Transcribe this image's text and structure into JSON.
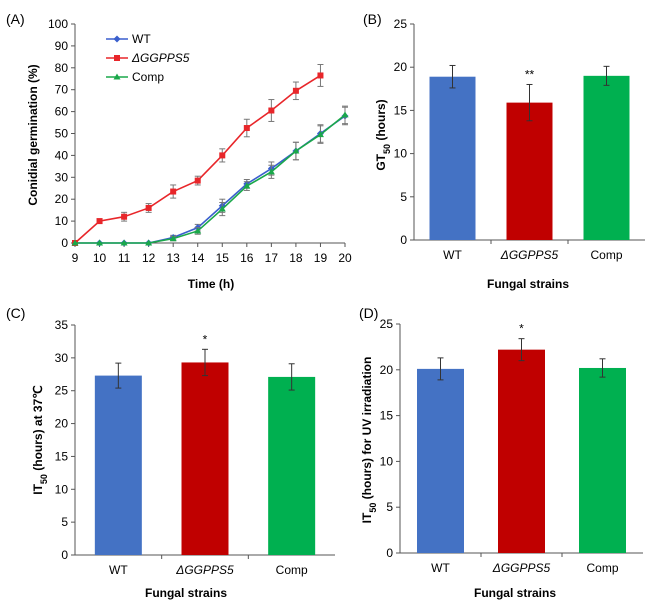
{
  "chart_data": [
    {
      "panel": "(A)",
      "type": "line",
      "xlabel": "Time (h)",
      "ylabel": "Conidial germination (%)",
      "xlim": [
        9,
        20
      ],
      "ylim": [
        0,
        100
      ],
      "x_ticks": [
        9,
        10,
        11,
        12,
        13,
        14,
        15,
        16,
        17,
        18,
        19,
        20
      ],
      "y_ticks": [
        0,
        10,
        20,
        30,
        40,
        50,
        60,
        70,
        80,
        90,
        100
      ],
      "legend_position": "top-left",
      "series": [
        {
          "name": "WT",
          "color": "#3a5fcd",
          "marker": "diamond",
          "x": [
            9,
            10,
            11,
            12,
            13,
            14,
            15,
            16,
            17,
            18,
            19,
            20
          ],
          "y": [
            0,
            0,
            0,
            0,
            2.5,
            7,
            17,
            27,
            34,
            42,
            50,
            58
          ],
          "err": [
            0,
            0,
            0,
            0,
            1,
            1.5,
            3,
            2,
            3,
            4,
            4,
            4
          ]
        },
        {
          "name": "ΔGGPPS5",
          "color": "#e8262a",
          "marker": "square",
          "x": [
            9,
            10,
            11,
            12,
            13,
            14,
            15,
            16,
            17,
            18,
            19
          ],
          "y": [
            0,
            10,
            12,
            16,
            23.5,
            28.5,
            40,
            52.5,
            60.5,
            69.5,
            76.5
          ],
          "err": [
            0,
            1,
            2,
            2,
            3,
            2,
            3,
            4,
            5,
            4,
            5
          ]
        },
        {
          "name": "Comp",
          "color": "#1aa84a",
          "marker": "triangle",
          "x": [
            9,
            10,
            11,
            12,
            13,
            14,
            15,
            16,
            17,
            18,
            19,
            20
          ],
          "y": [
            0,
            0,
            0,
            0,
            2,
            5.5,
            15.5,
            26,
            32.5,
            42,
            49.5,
            58.5
          ],
          "err": [
            0,
            0,
            0,
            0,
            1,
            1.5,
            3,
            2,
            3,
            4,
            4,
            4
          ]
        }
      ]
    },
    {
      "panel": "(B)",
      "type": "bar",
      "categories": [
        "WT",
        "ΔGGPPS5",
        "Comp"
      ],
      "values": [
        18.9,
        15.9,
        19.0
      ],
      "errors": [
        1.3,
        2.1,
        1.1
      ],
      "colors": [
        "#4472c4",
        "#c00000",
        "#00b050"
      ],
      "significance": [
        "",
        "**",
        ""
      ],
      "xlabel": "Fungal strains",
      "ylabel": "GT50 (hours)",
      "ylim": [
        0,
        25
      ],
      "y_ticks": [
        0,
        5,
        10,
        15,
        20,
        25
      ]
    },
    {
      "panel": "(C)",
      "type": "bar",
      "categories": [
        "WT",
        "ΔGGPPS5",
        "Comp"
      ],
      "values": [
        27.3,
        29.3,
        27.1
      ],
      "errors": [
        1.9,
        2.0,
        2.0
      ],
      "colors": [
        "#4472c4",
        "#c00000",
        "#00b050"
      ],
      "significance": [
        "",
        "*",
        ""
      ],
      "xlabel": "Fungal strains",
      "ylabel": "IT50 (hours) at 37℃",
      "ylim": [
        0,
        35
      ],
      "y_ticks": [
        0,
        5,
        10,
        15,
        20,
        25,
        30,
        35
      ]
    },
    {
      "panel": "(D)",
      "type": "bar",
      "categories": [
        "WT",
        "ΔGGPPS5",
        "Comp"
      ],
      "values": [
        20.1,
        22.2,
        20.2
      ],
      "errors": [
        1.2,
        1.2,
        1.0
      ],
      "colors": [
        "#4472c4",
        "#c00000",
        "#00b050"
      ],
      "significance": [
        "",
        "*",
        ""
      ],
      "xlabel": "Fungal strains",
      "ylabel": "IT50 (hours) for UV irradiation",
      "ylim": [
        0,
        25
      ],
      "y_ticks": [
        0,
        5,
        10,
        15,
        20,
        25
      ]
    }
  ],
  "text": {
    "a_label": "(A)",
    "b_label": "(B)",
    "c_label": "(C)",
    "d_label": "(D)",
    "a_ylabel": "Conidial germination (%)",
    "a_xlabel": "Time (h)",
    "b_ylabel_main": "GT",
    "b_ylabel_sub": "50",
    "b_ylabel_tail": " (hours)",
    "c_ylabel_main": "IT",
    "c_ylabel_sub": "50",
    "c_ylabel_tail": " (hours) at 37℃",
    "d_ylabel_main": "IT",
    "d_ylabel_sub": "50",
    "d_ylabel_tail": " (hours) for UV irradiation",
    "strains_label": "Fungal strains"
  }
}
